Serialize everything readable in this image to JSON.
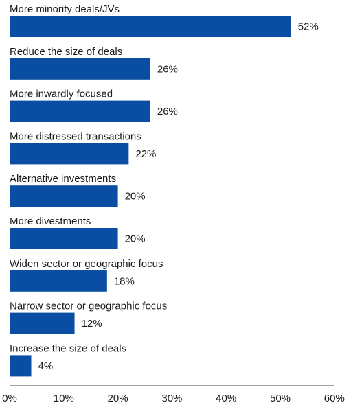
{
  "chart_data": {
    "type": "bar",
    "orientation": "horizontal",
    "categories": [
      "More minority deals/JVs",
      "Reduce the size of deals",
      "More inwardly focused",
      "More distressed transactions",
      "Alternative investments",
      "More divestments",
      "Widen sector or geographic focus",
      "Narrow sector or geographic focus",
      "Increase the size of deals"
    ],
    "values": [
      52,
      26,
      26,
      22,
      20,
      20,
      18,
      12,
      4
    ],
    "value_labels": [
      "52%",
      "26%",
      "26%",
      "22%",
      "20%",
      "20%",
      "18%",
      "12%",
      "4%"
    ],
    "title": "",
    "xlabel": "",
    "ylabel": "",
    "xlim": [
      0,
      60
    ],
    "x_ticks": [
      0,
      10,
      20,
      30,
      40,
      50,
      60
    ],
    "x_tick_labels": [
      "0%",
      "10%",
      "20%",
      "30%",
      "40%",
      "50%",
      "60%"
    ],
    "bar_color": "#0a4ea3",
    "grid": false,
    "legend": "none"
  }
}
